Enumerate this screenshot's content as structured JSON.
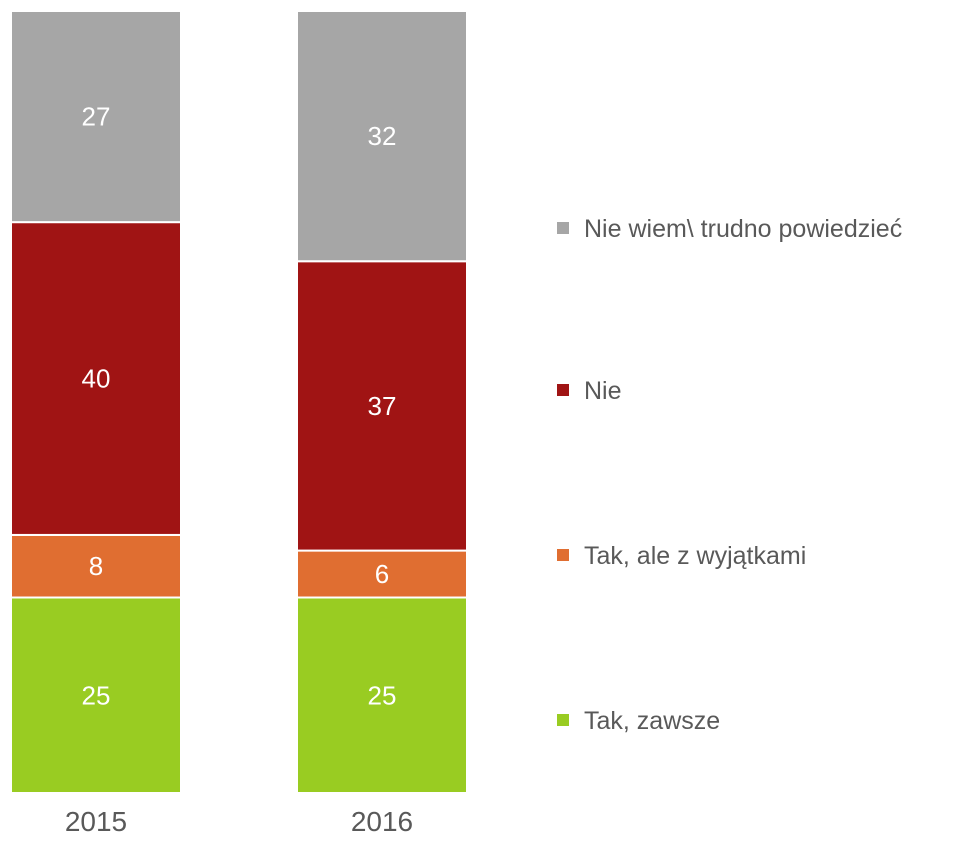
{
  "chart_data": {
    "type": "bar",
    "stacked": true,
    "categories": [
      "2015",
      "2016"
    ],
    "series": [
      {
        "name": "Tak, zawsze",
        "values": [
          25,
          25
        ],
        "color": "#99CC22"
      },
      {
        "name": "Tak, ale z wyjątkami",
        "values": [
          8,
          6
        ],
        "color": "#E06E31"
      },
      {
        "name": "Nie",
        "values": [
          40,
          37
        ],
        "color": "#A01414"
      },
      {
        "name": "Nie wiem\\ trudno powiedzieć",
        "values": [
          27,
          32
        ],
        "color": "#A6A6A6"
      }
    ],
    "legend_position": "right",
    "legend_order": [
      "Nie wiem\\ trudno powiedzieć",
      "Nie",
      "Tak, ale z wyjątkami",
      "Tak, zawsze"
    ],
    "data_labels": true,
    "grid": false
  }
}
